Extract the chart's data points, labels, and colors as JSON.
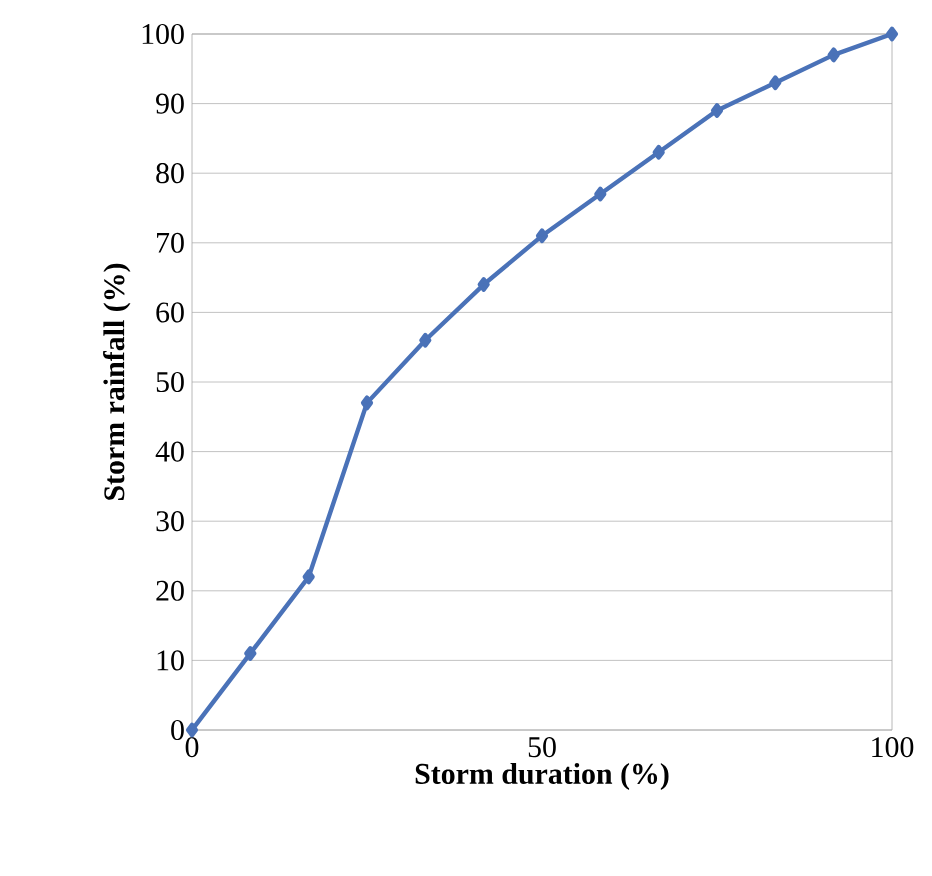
{
  "chart_data": {
    "type": "line",
    "xlabel": "Storm duration (%)",
    "ylabel": "Storm rainfall (%)",
    "series": [
      {
        "color": "#4a72b8",
        "x": [
          0,
          8.33,
          16.67,
          25,
          33.33,
          41.67,
          50,
          58.33,
          66.67,
          75,
          83.33,
          91.67,
          100
        ],
        "values": [
          0,
          11,
          22,
          47,
          56,
          64,
          71,
          77,
          83,
          89,
          93,
          97,
          100
        ]
      }
    ],
    "xlim": [
      0,
      100
    ],
    "xticks": [
      0,
      50,
      100
    ],
    "ylim": [
      0,
      100
    ],
    "yticks": [
      0,
      10,
      20,
      30,
      40,
      50,
      60,
      70,
      80,
      90,
      100
    ],
    "grid": "y",
    "marker": "diamond",
    "line_style": "solid",
    "legend": false
  }
}
